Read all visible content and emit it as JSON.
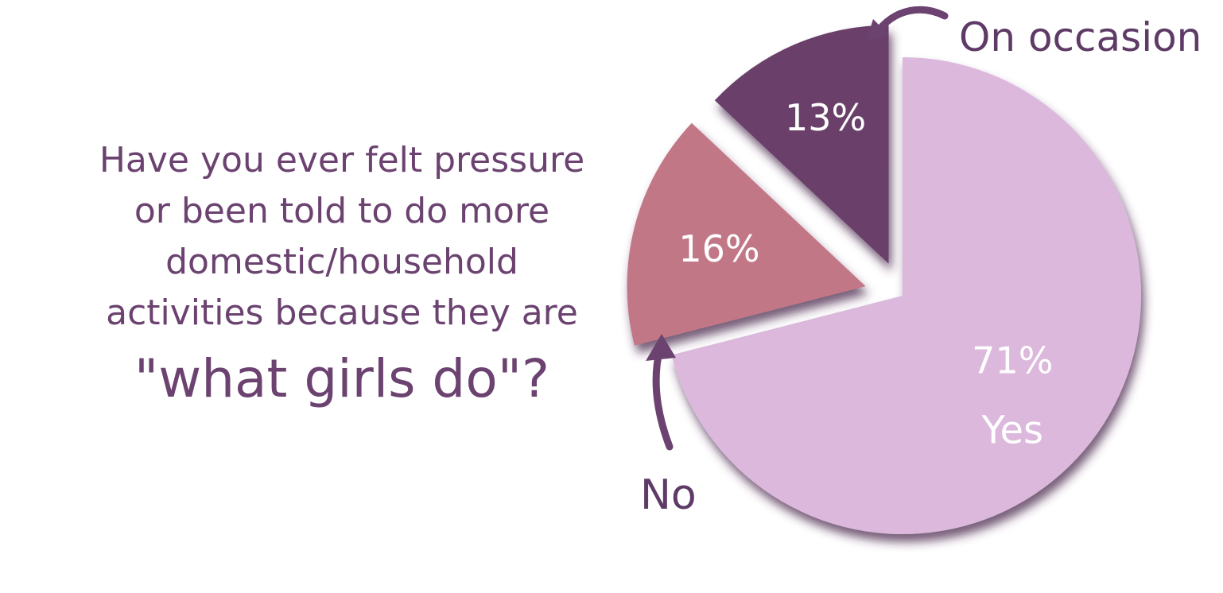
{
  "question": {
    "lines": [
      "Have you ever felt pressure",
      "or been told to do more",
      "domestic/household",
      "activities because they are"
    ],
    "emphasis": "\"what girls do\"?"
  },
  "chart_data": {
    "type": "pie",
    "title": "",
    "slices": [
      {
        "label": "Yes",
        "value": 71,
        "value_label": "71%",
        "color": "#dbb8dc"
      },
      {
        "label": "No",
        "value": 16,
        "value_label": "16%",
        "color": "#c27787"
      },
      {
        "label": "On occasion",
        "value": 13,
        "value_label": "13%",
        "color": "#6a3f6a"
      }
    ],
    "exploded": true,
    "accent_color": "#6b4270"
  }
}
